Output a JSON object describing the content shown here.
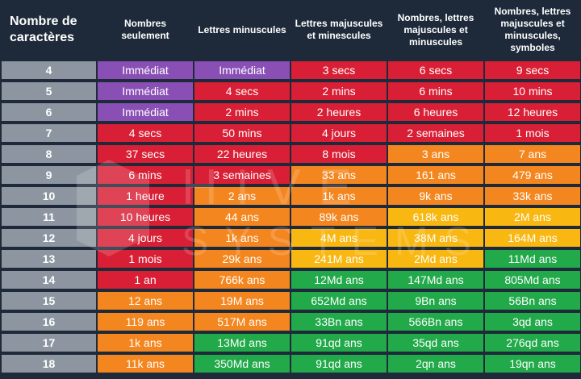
{
  "headers": [
    "Nombre de caractères",
    "Nombres seulement",
    "Lettres minuscules",
    "Lettres majuscules et minescules",
    "Nombres, lettres majuscules et minuscules",
    "Nombres, lettres majuscules et minuscules, symboles"
  ],
  "rows": [
    {
      "chars": "4",
      "cells": [
        {
          "t": "Immédiat",
          "c": "purple"
        },
        {
          "t": "Immédiat",
          "c": "purple"
        },
        {
          "t": "3 secs",
          "c": "red"
        },
        {
          "t": "6 secs",
          "c": "red"
        },
        {
          "t": "9 secs",
          "c": "red"
        }
      ]
    },
    {
      "chars": "5",
      "cells": [
        {
          "t": "Immédiat",
          "c": "purple"
        },
        {
          "t": "4 secs",
          "c": "red"
        },
        {
          "t": "2 mins",
          "c": "red"
        },
        {
          "t": "6 mins",
          "c": "red"
        },
        {
          "t": "10 mins",
          "c": "red"
        }
      ]
    },
    {
      "chars": "6",
      "cells": [
        {
          "t": "Immédiat",
          "c": "purple"
        },
        {
          "t": "2 mins",
          "c": "red"
        },
        {
          "t": "2 heures",
          "c": "red"
        },
        {
          "t": "6 heures",
          "c": "red"
        },
        {
          "t": "12 heures",
          "c": "red"
        }
      ]
    },
    {
      "chars": "7",
      "cells": [
        {
          "t": "4 secs",
          "c": "red"
        },
        {
          "t": "50 mins",
          "c": "red"
        },
        {
          "t": "4 jours",
          "c": "red"
        },
        {
          "t": "2 semaines",
          "c": "red"
        },
        {
          "t": "1 mois",
          "c": "red"
        }
      ]
    },
    {
      "chars": "8",
      "cells": [
        {
          "t": "37 secs",
          "c": "red"
        },
        {
          "t": "22 heures",
          "c": "red"
        },
        {
          "t": "8 mois",
          "c": "red"
        },
        {
          "t": "3 ans",
          "c": "orange"
        },
        {
          "t": "7 ans",
          "c": "orange"
        }
      ]
    },
    {
      "chars": "9",
      "cells": [
        {
          "t": "6 mins",
          "c": "red"
        },
        {
          "t": "3 semaines",
          "c": "red"
        },
        {
          "t": "33 ans",
          "c": "orange"
        },
        {
          "t": "161 ans",
          "c": "orange"
        },
        {
          "t": "479 ans",
          "c": "orange"
        }
      ]
    },
    {
      "chars": "10",
      "cells": [
        {
          "t": "1 heure",
          "c": "red"
        },
        {
          "t": "2 ans",
          "c": "orange"
        },
        {
          "t": "1k ans",
          "c": "orange"
        },
        {
          "t": "9k ans",
          "c": "orange"
        },
        {
          "t": "33k ans",
          "c": "orange"
        }
      ]
    },
    {
      "chars": "11",
      "cells": [
        {
          "t": "10 heures",
          "c": "red"
        },
        {
          "t": "44 ans",
          "c": "orange"
        },
        {
          "t": "89k ans",
          "c": "orange"
        },
        {
          "t": "618k ans",
          "c": "yellow"
        },
        {
          "t": "2M ans",
          "c": "yellow"
        }
      ]
    },
    {
      "chars": "12",
      "cells": [
        {
          "t": "4 jours",
          "c": "red"
        },
        {
          "t": "1k ans",
          "c": "orange"
        },
        {
          "t": "4M ans",
          "c": "yellow"
        },
        {
          "t": "38M ans",
          "c": "yellow"
        },
        {
          "t": "164M ans",
          "c": "yellow"
        }
      ]
    },
    {
      "chars": "13",
      "cells": [
        {
          "t": "1 mois",
          "c": "red"
        },
        {
          "t": "29k ans",
          "c": "orange"
        },
        {
          "t": "241M ans",
          "c": "yellow"
        },
        {
          "t": "2Md ans",
          "c": "yellow"
        },
        {
          "t": "11Md ans",
          "c": "green"
        }
      ]
    },
    {
      "chars": "14",
      "cells": [
        {
          "t": "1 an",
          "c": "red"
        },
        {
          "t": "766k ans",
          "c": "orange"
        },
        {
          "t": "12Md ans",
          "c": "green"
        },
        {
          "t": "147Md ans",
          "c": "green"
        },
        {
          "t": "805Md ans",
          "c": "green"
        }
      ]
    },
    {
      "chars": "15",
      "cells": [
        {
          "t": "12 ans",
          "c": "orange"
        },
        {
          "t": "19M ans",
          "c": "orange"
        },
        {
          "t": "652Md ans",
          "c": "green"
        },
        {
          "t": "9Bn ans",
          "c": "green"
        },
        {
          "t": "56Bn ans",
          "c": "green"
        }
      ]
    },
    {
      "chars": "16",
      "cells": [
        {
          "t": "119 ans",
          "c": "orange"
        },
        {
          "t": "517M ans",
          "c": "orange"
        },
        {
          "t": "33Bn ans",
          "c": "green"
        },
        {
          "t": "566Bn ans",
          "c": "green"
        },
        {
          "t": "3qd ans",
          "c": "green"
        }
      ]
    },
    {
      "chars": "17",
      "cells": [
        {
          "t": "1k ans",
          "c": "orange"
        },
        {
          "t": "13Md ans",
          "c": "green"
        },
        {
          "t": "91qd ans",
          "c": "green"
        },
        {
          "t": "35qd ans",
          "c": "green"
        },
        {
          "t": "276qd ans",
          "c": "green"
        }
      ]
    },
    {
      "chars": "18",
      "cells": [
        {
          "t": "11k ans",
          "c": "orange"
        },
        {
          "t": "350Md ans",
          "c": "green"
        },
        {
          "t": "91qd ans",
          "c": "green"
        },
        {
          "t": "2qn ans",
          "c": "green"
        },
        {
          "t": "19qn ans",
          "c": "green"
        }
      ]
    }
  ],
  "watermark": {
    "line1": "HIVE",
    "line2": "SYSTEMS"
  },
  "colors": {
    "purple": "#8a4fb5",
    "red": "#d81f35",
    "orange": "#f4861f",
    "yellow": "#f9b712",
    "green": "#21a94a",
    "label": "#8d96a0",
    "bg": "#1e2a3a"
  }
}
